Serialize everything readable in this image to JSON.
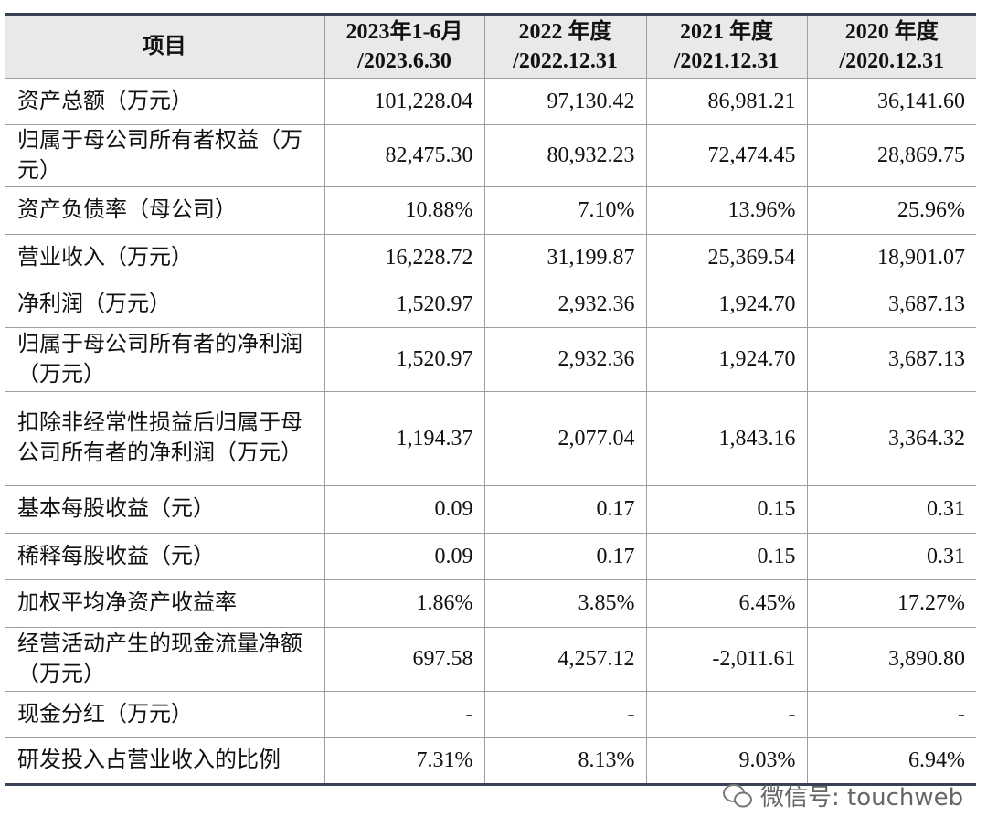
{
  "table": {
    "header": [
      "项目",
      [
        "2023年1-6月",
        "/2023.6.30"
      ],
      [
        "2022 年度",
        "/2022.12.31"
      ],
      [
        "2021 年度",
        "/2021.12.31"
      ],
      [
        "2020 年度",
        "/2020.12.31"
      ]
    ],
    "rows": [
      [
        "资产总额（万元）",
        "101,228.04",
        "97,130.42",
        "86,981.21",
        "36,141.60"
      ],
      [
        "归属于母公司所有者权益（万元）",
        "82,475.30",
        "80,932.23",
        "72,474.45",
        "28,869.75"
      ],
      [
        "资产负债率（母公司）",
        "10.88%",
        "7.10%",
        "13.96%",
        "25.96%"
      ],
      [
        "营业收入（万元）",
        "16,228.72",
        "31,199.87",
        "25,369.54",
        "18,901.07"
      ],
      [
        "净利润（万元）",
        "1,520.97",
        "2,932.36",
        "1,924.70",
        "3,687.13"
      ],
      [
        "归属于母公司所有者的净利润（万元）",
        "1,520.97",
        "2,932.36",
        "1,924.70",
        "3,687.13"
      ],
      [
        "扣除非经常性损益后归属于母公司所有者的净利润（万元）",
        "1,194.37",
        "2,077.04",
        "1,843.16",
        "3,364.32"
      ],
      [
        "基本每股收益（元）",
        "0.09",
        "0.17",
        "0.15",
        "0.31"
      ],
      [
        "稀释每股收益（元）",
        "0.09",
        "0.17",
        "0.15",
        "0.31"
      ],
      [
        "加权平均净资产收益率",
        "1.86%",
        "3.85%",
        "6.45%",
        "17.27%"
      ],
      [
        "经营活动产生的现金流量净额（万元）",
        "697.58",
        "4,257.12",
        "-2,011.61",
        "3,890.80"
      ],
      [
        "现金分红（万元）",
        "-",
        "-",
        "-",
        "-"
      ],
      [
        "研发投入占营业收入的比例",
        "7.31%",
        "8.13%",
        "9.03%",
        "6.94%"
      ]
    ]
  },
  "watermark": "微信号: touchweb"
}
